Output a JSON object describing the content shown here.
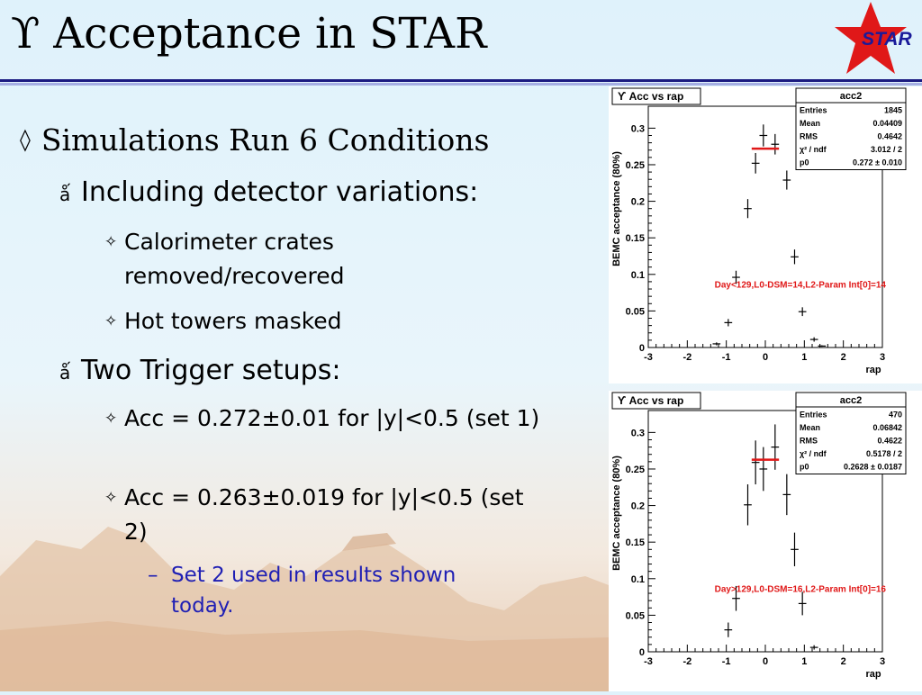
{
  "slide": {
    "title": "ϒ Acceptance in STAR",
    "logo_text": "STAR",
    "colors": {
      "title_rule": "#1a1a80",
      "star_red": "#e01818",
      "subtext": "#1f1fb4",
      "fit_line": "#e01818"
    }
  },
  "bullets": {
    "l1_marker": "◊",
    "l1": "Simulations Run 6 Conditions",
    "l2_marker": "ǻ",
    "l2a": "Including detector variations:",
    "l3_marker": "✧",
    "l3a": "Calorimeter crates removed/recovered",
    "l3b": "Hot towers masked",
    "l2b": "Two Trigger setups:",
    "l3c": "Acc = 0.272±0.01 for |y|<0.5 (set 1)",
    "l3d": "Acc = 0.263±0.019 for |y|<0.5 (set 2)",
    "l4_marker": "–",
    "l4a": "Set 2 used in results shown today."
  },
  "chart_data": [
    {
      "type": "scatter",
      "title": "ϒ Acc vs rap",
      "xlabel": "rap",
      "ylabel": "BEMC acceptance (80%)",
      "xlim": [
        -3,
        3
      ],
      "ylim": [
        0,
        0.33
      ],
      "xticks": [
        "-3",
        "-2",
        "-1",
        "0",
        "1",
        "2",
        "3"
      ],
      "yticks": [
        "0",
        "0.05",
        "0.1",
        "0.15",
        "0.2",
        "0.25",
        "0.3"
      ],
      "stats": {
        "name": "acc2",
        "rows": [
          [
            "Entries",
            "1845"
          ],
          [
            "Mean",
            "0.04409"
          ],
          [
            "RMS",
            "0.4642"
          ],
          [
            "χ² / ndf",
            "3.012 / 2"
          ],
          [
            "p0",
            "0.272 ± 0.010"
          ]
        ]
      },
      "annotation": "Day<129,L0-DSM=14,L2-Param Int[0]=14",
      "fit": {
        "x": [
          -0.35,
          0.35
        ],
        "y": 0.272
      },
      "points": [
        {
          "x": -1.25,
          "y": 0.005,
          "yerr": 0.002
        },
        {
          "x": -0.95,
          "y": 0.034,
          "yerr": 0.005
        },
        {
          "x": -0.75,
          "y": 0.096,
          "yerr": 0.009
        },
        {
          "x": -0.45,
          "y": 0.19,
          "yerr": 0.013
        },
        {
          "x": -0.25,
          "y": 0.252,
          "yerr": 0.014
        },
        {
          "x": -0.05,
          "y": 0.29,
          "yerr": 0.015
        },
        {
          "x": 0.25,
          "y": 0.278,
          "yerr": 0.014
        },
        {
          "x": 0.55,
          "y": 0.229,
          "yerr": 0.013
        },
        {
          "x": 0.75,
          "y": 0.124,
          "yerr": 0.01
        },
        {
          "x": 0.95,
          "y": 0.049,
          "yerr": 0.006
        },
        {
          "x": 1.25,
          "y": 0.011,
          "yerr": 0.003
        },
        {
          "x": 1.45,
          "y": 0.002,
          "yerr": 0.001
        }
      ]
    },
    {
      "type": "scatter",
      "title": "ϒ Acc vs rap",
      "xlabel": "rap",
      "ylabel": "BEMC acceptance (80%)",
      "xlim": [
        -3,
        3
      ],
      "ylim": [
        0,
        0.33
      ],
      "xticks": [
        "-3",
        "-2",
        "-1",
        "0",
        "1",
        "2",
        "3"
      ],
      "yticks": [
        "0",
        "0.05",
        "0.1",
        "0.15",
        "0.2",
        "0.25",
        "0.3"
      ],
      "stats": {
        "name": "acc2",
        "rows": [
          [
            "Entries",
            "470"
          ],
          [
            "Mean",
            "0.06842"
          ],
          [
            "RMS",
            "0.4622"
          ],
          [
            "χ² / ndf",
            "0.5178 / 2"
          ],
          [
            "p0",
            "0.2628 ± 0.0187"
          ]
        ]
      },
      "annotation": "Day>129,L0-DSM=16,L2-Param Int[0]=16",
      "fit": {
        "x": [
          -0.35,
          0.35
        ],
        "y": 0.2628
      },
      "points": [
        {
          "x": -0.95,
          "y": 0.03,
          "yerr": 0.01
        },
        {
          "x": -0.75,
          "y": 0.073,
          "yerr": 0.017
        },
        {
          "x": -0.45,
          "y": 0.201,
          "yerr": 0.028
        },
        {
          "x": -0.25,
          "y": 0.259,
          "yerr": 0.03
        },
        {
          "x": -0.05,
          "y": 0.25,
          "yerr": 0.03
        },
        {
          "x": 0.25,
          "y": 0.28,
          "yerr": 0.031
        },
        {
          "x": 0.55,
          "y": 0.215,
          "yerr": 0.028
        },
        {
          "x": 0.75,
          "y": 0.14,
          "yerr": 0.023
        },
        {
          "x": 0.95,
          "y": 0.066,
          "yerr": 0.016
        },
        {
          "x": 1.25,
          "y": 0.006,
          "yerr": 0.003
        }
      ]
    }
  ]
}
